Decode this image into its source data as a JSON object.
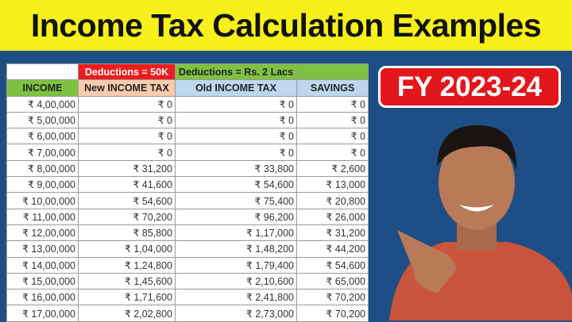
{
  "title": "Income Tax Calculation Examples",
  "badge": "FY 2023-24",
  "table": {
    "group_headers": [
      "",
      "Deductions = 50K",
      "Deductions = Rs. 2 Lacs",
      ""
    ],
    "group_colors": [
      "#ffffff",
      "#ee1c1c",
      "#7dc242",
      "#7dc242"
    ],
    "columns": [
      "INCOME",
      "New INCOME TAX",
      "Old INCOME TAX",
      "SAVINGS"
    ],
    "column_colors": [
      "#7dc242",
      "#f8cbad",
      "#bdd7ee",
      "#bdd7ee"
    ],
    "rows": [
      [
        "₹ 4,00,000",
        "₹ 0",
        "₹ 0",
        "₹ 0"
      ],
      [
        "₹ 5,00,000",
        "₹ 0",
        "₹ 0",
        "₹ 0"
      ],
      [
        "₹ 6,00,000",
        "₹ 0",
        "₹ 0",
        "₹ 0"
      ],
      [
        "₹ 7,00,000",
        "₹ 0",
        "₹ 0",
        "₹ 0"
      ],
      [
        "₹ 8,00,000",
        "₹ 31,200",
        "₹ 33,800",
        "₹ 2,600"
      ],
      [
        "₹ 9,00,000",
        "₹ 41,600",
        "₹ 54,600",
        "₹ 13,000"
      ],
      [
        "₹ 10,00,000",
        "₹ 54,600",
        "₹ 75,400",
        "₹ 20,800"
      ],
      [
        "₹ 11,00,000",
        "₹ 70,200",
        "₹ 96,200",
        "₹ 26,000"
      ],
      [
        "₹ 12,00,000",
        "₹ 85,800",
        "₹ 1,17,000",
        "₹ 31,200"
      ],
      [
        "₹ 13,00,000",
        "₹ 1,04,000",
        "₹ 1,48,200",
        "₹ 44,200"
      ],
      [
        "₹ 14,00,000",
        "₹ 1,24,800",
        "₹ 1,79,400",
        "₹ 54,600"
      ],
      [
        "₹ 15,00,000",
        "₹ 1,45,600",
        "₹ 2,10,600",
        "₹ 65,000"
      ],
      [
        "₹ 16,00,000",
        "₹ 1,71,600",
        "₹ 2,41,800",
        "₹ 70,200"
      ],
      [
        "₹ 17,00,000",
        "₹ 2,02,800",
        "₹ 2,73,000",
        "₹ 70,200"
      ]
    ]
  }
}
